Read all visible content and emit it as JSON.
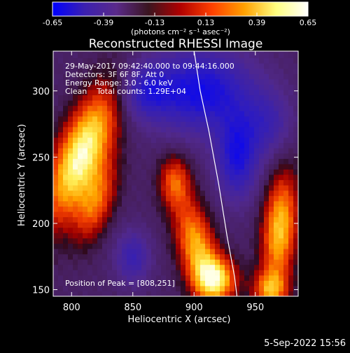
{
  "colorbar": {
    "tick_labels": [
      "-0.65",
      "-0.39",
      "-0.13",
      "0.13",
      "0.39",
      "0.65"
    ],
    "tick_values": [
      -0.65,
      -0.39,
      -0.13,
      0.13,
      0.39,
      0.65
    ],
    "range": [
      -0.65,
      0.65
    ],
    "units_label": "(photons cm⁻² s⁻¹ asec⁻²)",
    "colors": [
      "#0000ff",
      "#3b20b0",
      "#5a2a8a",
      "#3a1520",
      "#b00000",
      "#ff4000",
      "#ffa000",
      "#ffff80",
      "#ffffff"
    ]
  },
  "chart_data": {
    "type": "heatmap",
    "title": "Reconstructed RHESSI Image",
    "xlabel": "Heliocentric X (arcsec)",
    "ylabel": "Heliocentric Y (arcsec)",
    "xlim": [
      785,
      985
    ],
    "ylim": [
      145,
      330
    ],
    "x_ticks": [
      800,
      850,
      900,
      950
    ],
    "y_ticks": [
      150,
      200,
      250,
      300
    ],
    "x_tick_labels": [
      "800",
      "850",
      "900",
      "950"
    ],
    "y_tick_labels": [
      "150",
      "200",
      "250",
      "300"
    ],
    "annotations": [
      "29-May-2017 09:42:40.000 to 09:44:16.000",
      "Detectors: 3F 6F 8F, Att 0",
      "Energy Range: 3.0 - 6.0 keV",
      "Clean    Total counts: 1.29E+04"
    ],
    "peak_label": "Position of Peak = [808,251]",
    "peak": [
      808,
      251
    ],
    "limb_line": [
      [
        900,
        330
      ],
      [
        905,
        300
      ],
      [
        912,
        270
      ],
      [
        920,
        230
      ],
      [
        927,
        190
      ],
      [
        933,
        160
      ],
      [
        935,
        145
      ]
    ],
    "sources": [
      {
        "x": 808,
        "y": 252,
        "sx": 14,
        "sy": 38,
        "rot": 25,
        "amp": 0.7
      },
      {
        "x": 820,
        "y": 215,
        "sx": 10,
        "sy": 22,
        "rot": 20,
        "amp": 0.35
      },
      {
        "x": 884,
        "y": 232,
        "sx": 9,
        "sy": 14,
        "rot": 0,
        "amp": 0.35
      },
      {
        "x": 902,
        "y": 183,
        "sx": 11,
        "sy": 26,
        "rot": -15,
        "amp": 0.5
      },
      {
        "x": 918,
        "y": 158,
        "sx": 12,
        "sy": 12,
        "rot": 0,
        "amp": 0.55
      },
      {
        "x": 970,
        "y": 196,
        "sx": 10,
        "sy": 30,
        "rot": 5,
        "amp": 0.55
      },
      {
        "x": 962,
        "y": 150,
        "sx": 10,
        "sy": 10,
        "rot": 0,
        "amp": 0.4
      },
      {
        "x": 905,
        "y": 300,
        "sx": 30,
        "sy": 22,
        "rot": 0,
        "amp": -0.5
      },
      {
        "x": 935,
        "y": 250,
        "sx": 12,
        "sy": 22,
        "rot": 0,
        "amp": -0.45
      },
      {
        "x": 860,
        "y": 300,
        "sx": 14,
        "sy": 14,
        "rot": 0,
        "amp": -0.3
      },
      {
        "x": 960,
        "y": 275,
        "sx": 14,
        "sy": 18,
        "rot": 0,
        "amp": -0.25
      },
      {
        "x": 850,
        "y": 175,
        "sx": 10,
        "sy": 14,
        "rot": 0,
        "amp": -0.3
      }
    ],
    "grid": false
  },
  "footer": {
    "date": "5-Sep-2022 15:56"
  }
}
